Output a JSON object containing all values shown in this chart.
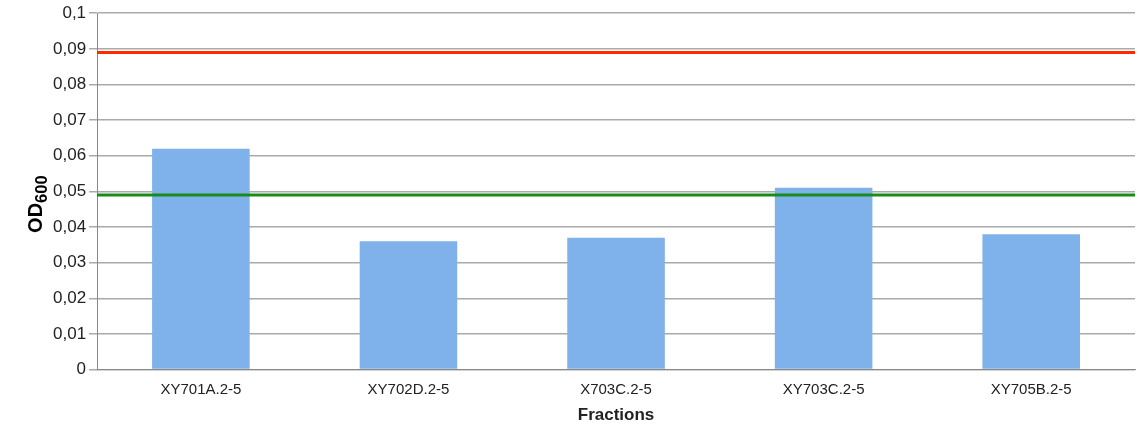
{
  "chart_data": {
    "type": "bar",
    "xlabel": "Fractions",
    "ylabel": "OD$_{600}$",
    "categories": [
      "XY701A.2-5",
      "XY702D.2-5",
      "X703C.2-5",
      "XY703C.2-5",
      "XY705B.2-5"
    ],
    "values": [
      0.062,
      0.036,
      0.037,
      0.051,
      0.038
    ],
    "color": "#7fb1ea",
    "ylim": [
      0,
      0.1
    ],
    "yticks": [
      0,
      {
        "value": 0.01,
        "label": "0,01"
      },
      {
        "value": 0.02,
        "label": "0,02"
      },
      {
        "value": 0.03,
        "label": "0,03"
      },
      {
        "value": 0.04,
        "label": "0,04"
      },
      {
        "value": 0.05,
        "label": "0,05"
      },
      {
        "value": 0.06,
        "label": "0,06"
      },
      {
        "value": 0.07,
        "label": "0,07"
      },
      {
        "value": 0.08,
        "label": "0,08"
      },
      {
        "value": 0.09,
        "label": "0,09"
      },
      {
        "value": 0.1,
        "label": "0,1"
      }
    ],
    "ref_lines": [
      {
        "axis": "y",
        "value": 0.089,
        "color": "#ff2a00"
      },
      {
        "axis": "y",
        "value": 0.049,
        "color": "#1a8a1a"
      }
    ],
    "grid": "y",
    "legend": false
  }
}
